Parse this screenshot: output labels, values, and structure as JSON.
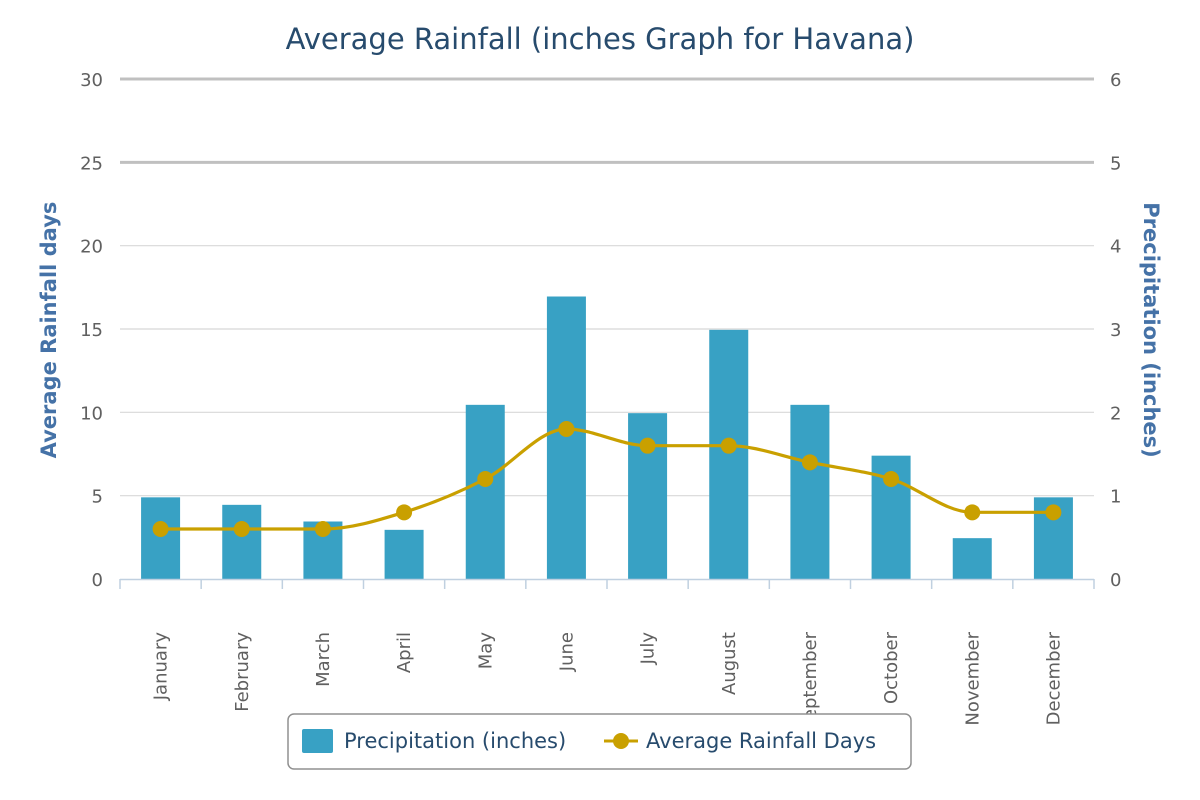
{
  "chart_data": {
    "type": "bar",
    "title": "Average Rainfall (inches Graph for Havana)",
    "categories": [
      "January",
      "February",
      "March",
      "April",
      "May",
      "June",
      "July",
      "August",
      "September",
      "October",
      "November",
      "December"
    ],
    "series": [
      {
        "name": "Precipitation (inches)",
        "type": "bar",
        "axis": "right",
        "color": "#38a1c4",
        "values": [
          0.98,
          0.89,
          0.69,
          0.59,
          2.09,
          3.39,
          1.99,
          2.99,
          2.09,
          1.48,
          0.49,
          0.98
        ]
      },
      {
        "name": "Average Rainfall Days",
        "type": "line",
        "axis": "left",
        "color": "#c9a000",
        "values": [
          3,
          3,
          3,
          4,
          6,
          9,
          8,
          8,
          7,
          6,
          4,
          4
        ]
      }
    ],
    "y_left": {
      "label": "Average Rainfall days",
      "range": [
        0,
        30
      ],
      "ticks": [
        "0",
        "5",
        "10",
        "15",
        "20",
        "25",
        "30"
      ]
    },
    "y_right": {
      "label": "Precipitation (inches)",
      "range": [
        0,
        6
      ],
      "ticks": [
        "0",
        "1",
        "2",
        "3",
        "4",
        "5",
        "6"
      ]
    },
    "grid": true,
    "legend_position": "bottom-center"
  }
}
